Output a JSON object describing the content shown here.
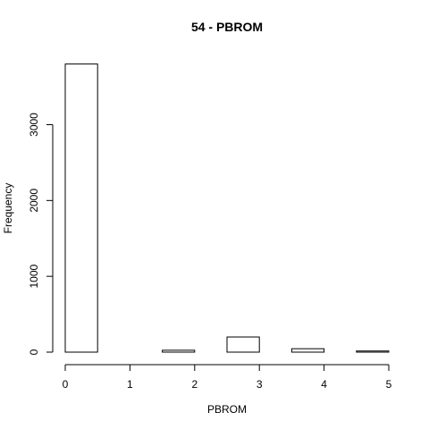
{
  "chart_data": {
    "type": "bar",
    "title": "54 - PBROM",
    "xlabel": "PBROM",
    "ylabel": "Frequency",
    "bins": [
      {
        "start": 0.0,
        "end": 0.5,
        "value": 3800
      },
      {
        "start": 0.5,
        "end": 1.0,
        "value": 0
      },
      {
        "start": 1.0,
        "end": 1.5,
        "value": 0
      },
      {
        "start": 1.5,
        "end": 2.0,
        "value": 25
      },
      {
        "start": 2.0,
        "end": 2.5,
        "value": 0
      },
      {
        "start": 2.5,
        "end": 3.0,
        "value": 200
      },
      {
        "start": 3.0,
        "end": 3.5,
        "value": 0
      },
      {
        "start": 3.5,
        "end": 4.0,
        "value": 45
      },
      {
        "start": 4.0,
        "end": 4.5,
        "value": 0
      },
      {
        "start": 4.5,
        "end": 5.0,
        "value": 15
      }
    ],
    "xticks": [
      0,
      1,
      2,
      3,
      4,
      5
    ],
    "yticks": [
      0,
      1000,
      2000,
      3000
    ],
    "xlim": [
      0,
      5
    ],
    "ylim": [
      0,
      3800
    ],
    "grid": false,
    "legend": "none"
  }
}
